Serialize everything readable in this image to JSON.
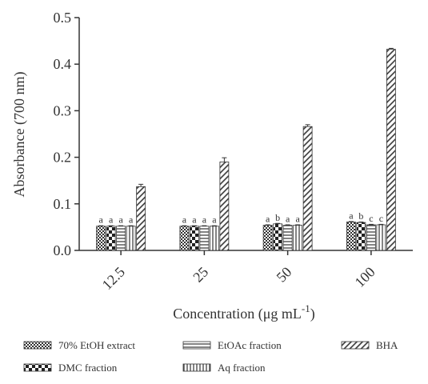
{
  "chart_data": {
    "type": "bar",
    "xlabel_main": "Concentration (",
    "xlabel_mu": "μ",
    "xlabel_rest": "g mL",
    "xlabel_sup": "-1",
    "xlabel_close": ")",
    "ylabel": "Absorbance (700 nm)",
    "ylim": [
      0,
      0.5
    ],
    "y_ticks": [
      "0.0",
      "0.1",
      "0.2",
      "0.3",
      "0.4",
      "0.5"
    ],
    "categories": [
      "12.5",
      "25",
      "50",
      "100"
    ],
    "series": [
      {
        "name": "70% EtOH extract",
        "pattern": "checker-fine",
        "values": [
          0.052,
          0.052,
          0.054,
          0.061
        ],
        "errors": [
          0.001,
          0.001,
          0.001,
          0.001
        ]
      },
      {
        "name": "DMC fraction",
        "pattern": "checker-coarse",
        "values": [
          0.052,
          0.052,
          0.057,
          0.06
        ],
        "errors": [
          0.001,
          0.001,
          0.001,
          0.001
        ]
      },
      {
        "name": "EtOAc fraction",
        "pattern": "horizontal",
        "values": [
          0.052,
          0.052,
          0.054,
          0.055
        ],
        "errors": [
          0.001,
          0.001,
          0.001,
          0.001
        ]
      },
      {
        "name": "Aq fraction",
        "pattern": "vertical",
        "values": [
          0.052,
          0.052,
          0.054,
          0.055
        ],
        "errors": [
          0.001,
          0.001,
          0.001,
          0.001
        ]
      },
      {
        "name": "BHA",
        "pattern": "diagonal",
        "values": [
          0.137,
          0.19,
          0.266,
          0.432
        ],
        "errors": [
          0.005,
          0.009,
          0.004,
          0.002
        ]
      }
    ],
    "letters": [
      [
        "a",
        "a",
        "a",
        "a"
      ],
      [
        "a",
        "a",
        "a",
        "a"
      ],
      [
        "a",
        "b",
        "a",
        "a"
      ],
      [
        "a",
        "b",
        "c",
        "c"
      ]
    ],
    "legend_position": "bottom",
    "grid": false,
    "colors": {
      "ink": "#333333",
      "background": "#ffffff"
    }
  }
}
